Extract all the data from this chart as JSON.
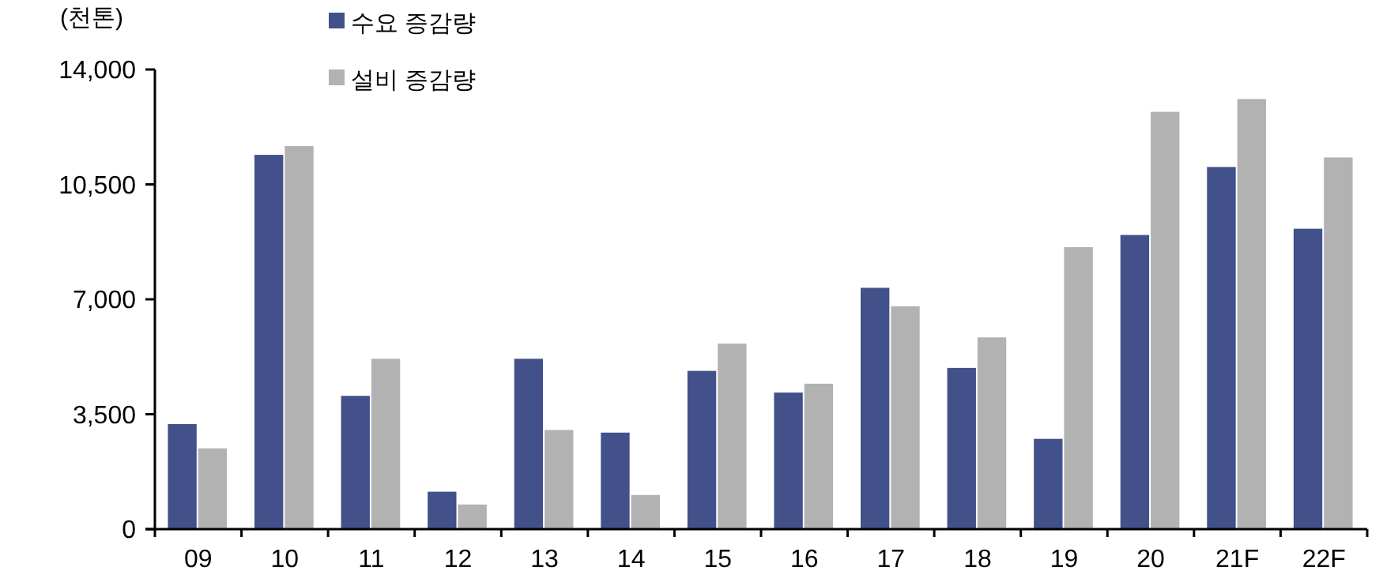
{
  "chart_data": {
    "type": "bar",
    "ylabel": "(천톤)",
    "categories": [
      "09",
      "10",
      "11",
      "12",
      "13",
      "14",
      "15",
      "16",
      "17",
      "18",
      "19",
      "20",
      "21F",
      "22F"
    ],
    "series": [
      {
        "name": "수요 증감량",
        "color": "#42518a",
        "values": [
          3200,
          11400,
          4060,
          1140,
          5190,
          2940,
          4820,
          4160,
          7350,
          4910,
          2750,
          8960,
          11030,
          9150
        ]
      },
      {
        "name": "설비 증감량",
        "color": "#b2b2b2",
        "values": [
          2460,
          11670,
          5190,
          750,
          3020,
          1040,
          5650,
          4430,
          6790,
          5840,
          8590,
          12710,
          13100,
          11320
        ]
      }
    ],
    "ylim": [
      0,
      14000
    ],
    "yticks": [
      {
        "value": 0,
        "label": "0"
      },
      {
        "value": 3500,
        "label": "3,500"
      },
      {
        "value": 7000,
        "label": "7,000"
      },
      {
        "value": 10500,
        "label": "10,500"
      },
      {
        "value": 14000,
        "label": "14,000"
      }
    ],
    "grid": false,
    "legend": "top left"
  }
}
